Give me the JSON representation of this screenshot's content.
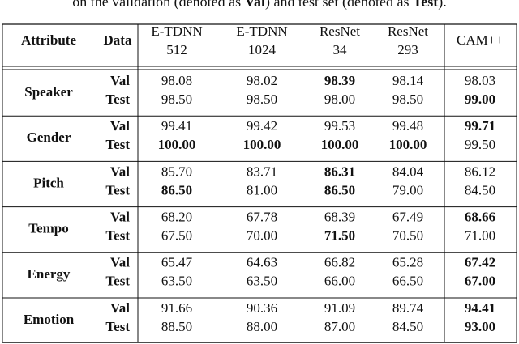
{
  "caption": [
    {
      "text": "on the validation (denoted as ",
      "bold": false
    },
    {
      "text": "Val",
      "bold": true
    },
    {
      "text": ") and test set (denoted as ",
      "bold": false
    },
    {
      "text": "Test",
      "bold": true
    },
    {
      "text": ").",
      "bold": false
    }
  ],
  "table": {
    "header": [
      [
        "Attribute"
      ],
      [
        "Data"
      ],
      [
        "E-TDNN",
        "512"
      ],
      [
        "E-TDNN",
        "1024"
      ],
      [
        "ResNet",
        "34"
      ],
      [
        "ResNet",
        "293"
      ],
      [
        "CAM++"
      ]
    ],
    "groups": [
      {
        "attribute": "Speaker",
        "rows": [
          {
            "data": "Val",
            "values": [
              "98.08",
              "98.02",
              "98.39",
              "98.14",
              "98.03"
            ],
            "bold": [
              2
            ]
          },
          {
            "data": "Test",
            "values": [
              "98.50",
              "98.50",
              "98.00",
              "98.50",
              "99.00"
            ],
            "bold": [
              4
            ]
          }
        ]
      },
      {
        "attribute": "Gender",
        "rows": [
          {
            "data": "Val",
            "values": [
              "99.41",
              "99.42",
              "99.53",
              "99.48",
              "99.71"
            ],
            "bold": [
              4
            ]
          },
          {
            "data": "Test",
            "values": [
              "100.00",
              "100.00",
              "100.00",
              "100.00",
              "99.50"
            ],
            "bold": [
              0,
              1,
              2,
              3
            ]
          }
        ]
      },
      {
        "attribute": "Pitch",
        "rows": [
          {
            "data": "Val",
            "values": [
              "85.70",
              "83.71",
              "86.31",
              "84.04",
              "86.12"
            ],
            "bold": [
              2
            ]
          },
          {
            "data": "Test",
            "values": [
              "86.50",
              "81.00",
              "86.50",
              "79.00",
              "84.50"
            ],
            "bold": [
              0,
              2
            ]
          }
        ]
      },
      {
        "attribute": "Tempo",
        "rows": [
          {
            "data": "Val",
            "values": [
              "68.20",
              "67.78",
              "68.39",
              "67.49",
              "68.66"
            ],
            "bold": [
              4
            ]
          },
          {
            "data": "Test",
            "values": [
              "67.50",
              "70.00",
              "71.50",
              "70.50",
              "71.00"
            ],
            "bold": [
              2
            ]
          }
        ]
      },
      {
        "attribute": "Energy",
        "rows": [
          {
            "data": "Val",
            "values": [
              "65.47",
              "64.63",
              "66.82",
              "65.28",
              "67.42"
            ],
            "bold": [
              4
            ]
          },
          {
            "data": "Test",
            "values": [
              "63.50",
              "63.50",
              "66.00",
              "66.50",
              "67.00"
            ],
            "bold": [
              4
            ]
          }
        ]
      },
      {
        "attribute": "Emotion",
        "rows": [
          {
            "data": "Val",
            "values": [
              "91.66",
              "90.36",
              "91.09",
              "89.74",
              "94.41"
            ],
            "bold": [
              4
            ]
          },
          {
            "data": "Test",
            "values": [
              "88.50",
              "88.00",
              "87.00",
              "84.50",
              "93.00"
            ],
            "bold": [
              4
            ]
          }
        ]
      }
    ]
  }
}
